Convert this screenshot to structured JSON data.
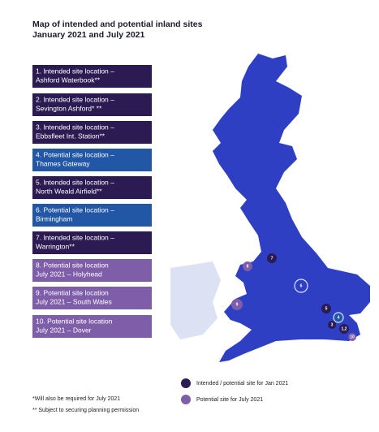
{
  "header": {
    "title": [
      "Map of intended and potential inland sites",
      "January 2021 and July 2021"
    ]
  },
  "sites": [
    {
      "lines": [
        "1. Intended site location –",
        "Ashford Waterbook**"
      ],
      "color": "#2b1b52"
    },
    {
      "lines": [
        "2. Intended site location –",
        "Sevington Ashford* **"
      ],
      "color": "#2b1b52"
    },
    {
      "lines": [
        "3. Intended site location –",
        "Ebbsfleet Int. Station**"
      ],
      "color": "#2b1b52"
    },
    {
      "lines": [
        "4. Potential site location –",
        "Thames Gateway"
      ],
      "color": "#2157a4"
    },
    {
      "lines": [
        "5.  Intended site location –",
        "North Weald Airfield**"
      ],
      "color": "#2b1b52"
    },
    {
      "lines": [
        "6. Potential site location –",
        "Birmingham"
      ],
      "color": "#2157a4"
    },
    {
      "lines": [
        "7. Intended site location –",
        "Warrington**"
      ],
      "color": "#2b1b52"
    },
    {
      "lines": [
        "8. Potential site location",
        "July 2021 – Holyhead"
      ],
      "color": "#7e5ea8"
    },
    {
      "lines": [
        "9. Potential site location",
        "July 2021 – South Wales"
      ],
      "color": "#7e5ea8"
    },
    {
      "lines": [
        "10. Potential site location",
        "July 2021 – Dover"
      ],
      "color": "#7e5ea8"
    }
  ],
  "markers": [
    {
      "label": "7",
      "color": "#2b1b52"
    },
    {
      "label": "8",
      "color": "#7e5ea8"
    },
    {
      "label": "6",
      "color": "none"
    },
    {
      "label": "9",
      "color": "#7e5ea8"
    },
    {
      "label": "5",
      "color": "#2b1b52"
    },
    {
      "label": "4",
      "color": "#2157a4"
    },
    {
      "label": "3",
      "color": "#2b1b52"
    },
    {
      "label": "1,2",
      "color": "#2b1b52"
    },
    {
      "label": "10",
      "color": "#7e5ea8"
    }
  ],
  "legend": [
    {
      "label": "Intended / potential site for Jan 2021",
      "color": "#2b1b52"
    },
    {
      "label": "Potential site for July 2021",
      "color": "#7e5ea8"
    }
  ],
  "footnotes": [
    "*Will also be required for July 2021",
    "** Subject to securing planning permission"
  ]
}
